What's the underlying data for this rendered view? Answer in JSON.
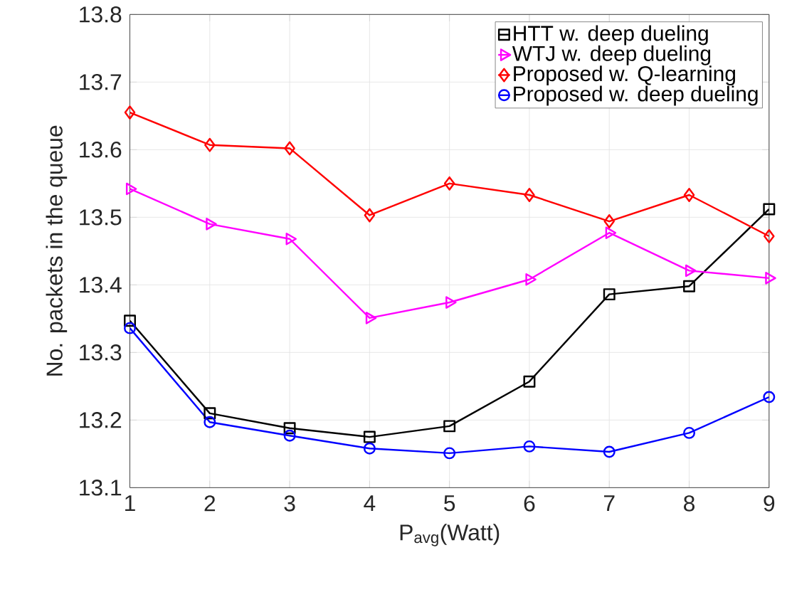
{
  "chart_data": {
    "type": "line",
    "xlabel": "P$_{avg}$(Watt)",
    "ylabel": "No. packets in the queue",
    "x": [
      1,
      2,
      3,
      4,
      5,
      6,
      7,
      8,
      9
    ],
    "series": [
      {
        "name": "HTT w. deep dueling",
        "color": "#000000",
        "marker": "square",
        "values": [
          13.347,
          13.21,
          13.188,
          13.175,
          13.191,
          13.257,
          13.386,
          13.398,
          13.512
        ]
      },
      {
        "name": "WTJ w. deep dueling",
        "color": "#ff00ff",
        "marker": "triangle",
        "values": [
          13.542,
          13.49,
          13.468,
          13.351,
          13.374,
          13.408,
          13.477,
          13.421,
          13.41
        ]
      },
      {
        "name": "Proposed w. Q-learning",
        "color": "#ff0000",
        "marker": "diamond",
        "values": [
          13.655,
          13.607,
          13.602,
          13.503,
          13.55,
          13.533,
          13.494,
          13.533,
          13.472
        ]
      },
      {
        "name": "Proposed w. deep dueling",
        "color": "#0000ff",
        "marker": "circle",
        "values": [
          13.336,
          13.197,
          13.177,
          13.158,
          13.151,
          13.161,
          13.153,
          13.181,
          13.234
        ]
      }
    ],
    "xlim": [
      1,
      9
    ],
    "ylim": [
      13.1,
      13.8
    ],
    "xticks": [
      1,
      2,
      3,
      4,
      5,
      6,
      7,
      8,
      9
    ],
    "yticks": [
      13.1,
      13.2,
      13.3,
      13.4,
      13.5,
      13.6,
      13.7,
      13.8
    ],
    "grid": true,
    "legend": "top right",
    "line_style": "solid"
  }
}
